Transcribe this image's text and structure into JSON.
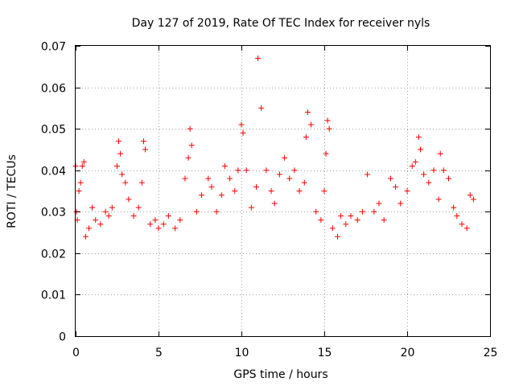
{
  "chart_data": {
    "type": "scatter",
    "title": "Day 127 of 2019, Rate Of TEC Index for receiver nyls",
    "xlabel": "GPS time / hours",
    "ylabel": "ROTI / TECUs",
    "xlim": [
      0,
      25
    ],
    "ylim": [
      0,
      0.07
    ],
    "xticks": [
      0,
      5,
      10,
      15,
      20,
      25
    ],
    "xtick_labels": [
      "0",
      "5",
      "10",
      "15",
      "20",
      "25"
    ],
    "yticks": [
      0,
      0.01,
      0.02,
      0.03,
      0.04,
      0.05,
      0.06,
      0.07
    ],
    "ytick_labels": [
      "0",
      "0.01",
      "0.02",
      "0.03",
      "0.04",
      "0.05",
      "0.06",
      "0.07"
    ],
    "grid": true,
    "marker": "+",
    "color": "#ff0000",
    "series": [
      {
        "name": "ROTI",
        "x": [
          0.0,
          0.05,
          0.1,
          0.2,
          0.3,
          0.4,
          0.5,
          0.6,
          0.8,
          1.0,
          1.2,
          1.5,
          1.8,
          2.0,
          2.2,
          2.5,
          2.6,
          2.7,
          2.8,
          3.0,
          3.2,
          3.5,
          3.8,
          4.0,
          4.1,
          4.2,
          4.5,
          4.8,
          5.0,
          5.3,
          5.6,
          6.0,
          6.3,
          6.6,
          6.8,
          6.9,
          7.0,
          7.3,
          7.6,
          8.0,
          8.2,
          8.5,
          8.8,
          9.0,
          9.3,
          9.6,
          9.8,
          10.0,
          10.1,
          10.3,
          10.6,
          10.9,
          11.0,
          11.2,
          11.5,
          11.8,
          12.0,
          12.3,
          12.6,
          12.9,
          13.2,
          13.5,
          13.8,
          13.9,
          14.0,
          14.2,
          14.5,
          14.8,
          15.0,
          15.1,
          15.2,
          15.3,
          15.5,
          15.8,
          16.0,
          16.3,
          16.6,
          17.0,
          17.3,
          17.6,
          18.0,
          18.3,
          18.6,
          19.0,
          19.3,
          19.6,
          20.0,
          20.3,
          20.5,
          20.7,
          20.8,
          21.0,
          21.3,
          21.6,
          21.9,
          22.0,
          22.2,
          22.5,
          22.8,
          23.0,
          23.3,
          23.6,
          23.8,
          24.0
        ],
        "y": [
          0.041,
          0.03,
          0.028,
          0.035,
          0.037,
          0.041,
          0.042,
          0.024,
          0.026,
          0.031,
          0.028,
          0.027,
          0.03,
          0.029,
          0.031,
          0.041,
          0.047,
          0.044,
          0.039,
          0.037,
          0.033,
          0.029,
          0.031,
          0.037,
          0.047,
          0.045,
          0.027,
          0.028,
          0.026,
          0.027,
          0.029,
          0.026,
          0.028,
          0.038,
          0.043,
          0.05,
          0.046,
          0.03,
          0.034,
          0.038,
          0.036,
          0.03,
          0.034,
          0.041,
          0.038,
          0.035,
          0.04,
          0.051,
          0.049,
          0.04,
          0.031,
          0.036,
          0.067,
          0.055,
          0.04,
          0.035,
          0.032,
          0.039,
          0.043,
          0.038,
          0.04,
          0.035,
          0.037,
          0.048,
          0.054,
          0.051,
          0.03,
          0.028,
          0.035,
          0.044,
          0.052,
          0.05,
          0.026,
          0.024,
          0.029,
          0.027,
          0.029,
          0.028,
          0.03,
          0.039,
          0.03,
          0.032,
          0.028,
          0.038,
          0.036,
          0.032,
          0.035,
          0.041,
          0.042,
          0.048,
          0.045,
          0.039,
          0.037,
          0.04,
          0.033,
          0.044,
          0.04,
          0.038,
          0.031,
          0.029,
          0.027,
          0.026,
          0.034,
          0.033
        ]
      }
    ]
  }
}
